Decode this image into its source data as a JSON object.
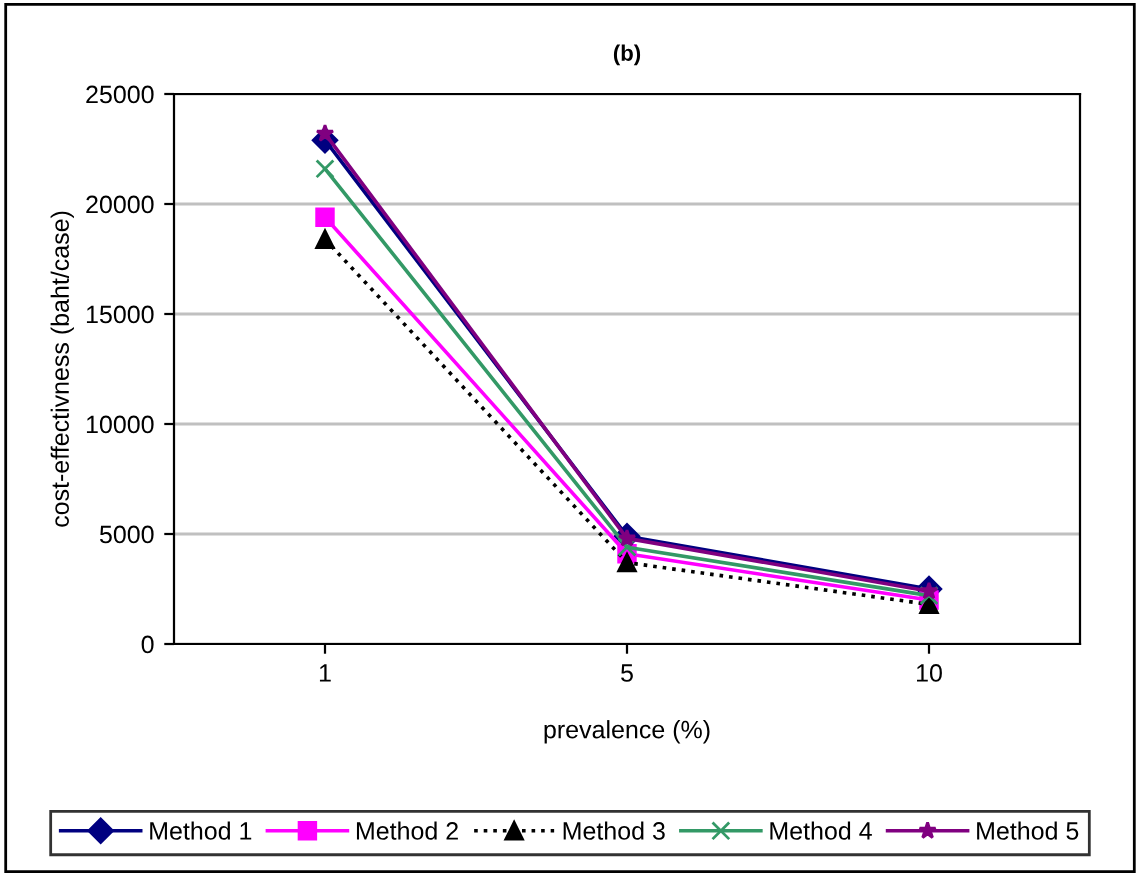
{
  "chart_data": {
    "type": "line",
    "title": "(b)",
    "xlabel": "prevalence (%)",
    "ylabel": "cost-effectivness (baht/case)",
    "categories": [
      "1",
      "5",
      "10"
    ],
    "series": [
      {
        "name": "Method 1",
        "color": "#000080",
        "marker": "diamond",
        "line_style": "solid",
        "values": [
          22900,
          4900,
          2500
        ]
      },
      {
        "name": "Method 2",
        "color": "#ff00ff",
        "marker": "square",
        "line_style": "solid",
        "values": [
          19400,
          4100,
          2000
        ]
      },
      {
        "name": "Method 3",
        "color": "#000000",
        "marker": "triangle",
        "line_style": "dotted",
        "values": [
          18400,
          3700,
          1800
        ]
      },
      {
        "name": "Method 4",
        "color": "#339966",
        "marker": "cross",
        "line_style": "solid",
        "values": [
          21600,
          4400,
          2200
        ]
      },
      {
        "name": "Method 5",
        "color": "#800080",
        "marker": "star",
        "line_style": "solid",
        "values": [
          23200,
          4800,
          2400
        ]
      }
    ],
    "ylim": [
      0,
      25000
    ],
    "yticks": [
      0,
      5000,
      10000,
      15000,
      20000,
      25000
    ],
    "grid": "y",
    "legend": "bottom"
  }
}
